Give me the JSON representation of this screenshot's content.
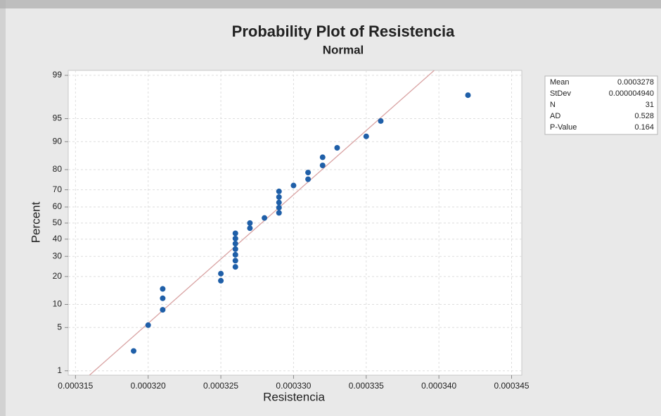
{
  "chart_data": {
    "type": "probability",
    "title": "Probability Plot of Resistencia",
    "subtitle": "Normal",
    "x_label": "Resistencia",
    "y_label": "Percent",
    "y_scale": "normal",
    "grid": true,
    "color": "#1f5fa8",
    "fit_color": "#d9a3a3",
    "x": [
      0.000319,
      0.00032,
      0.000321,
      0.000321,
      0.000321,
      0.000325,
      0.000325,
      0.000326,
      0.000326,
      0.000326,
      0.000326,
      0.000326,
      0.000326,
      0.000326,
      0.000327,
      0.000327,
      0.000328,
      0.000329,
      0.000329,
      0.000329,
      0.000329,
      0.000329,
      0.00033,
      0.000331,
      0.000331,
      0.000332,
      0.000332,
      0.000333,
      0.000335,
      0.000336,
      0.000342
    ],
    "values": [
      2.2,
      5.4,
      8.6,
      11.8,
      15.0,
      18.2,
      21.3,
      24.5,
      27.7,
      30.9,
      34.1,
      37.3,
      40.4,
      43.6,
      46.8,
      50.0,
      53.2,
      56.4,
      59.6,
      62.7,
      65.9,
      69.1,
      72.3,
      75.5,
      78.7,
      81.8,
      85.0,
      88.2,
      91.4,
      94.6,
      97.8
    ],
    "xlim": [
      0.0003145,
      0.0003457
    ],
    "xticks": [
      0.000315,
      {
        "value": 0.00032,
        "label": "0.000320"
      },
      0.000325,
      {
        "value": 0.00033,
        "label": "0.000330"
      },
      0.000335,
      {
        "value": 0.00034,
        "label": "0.000340"
      },
      0.000345
    ],
    "ylim": [
      0.83,
      99.19
    ],
    "yticks": [
      1,
      5,
      10,
      20,
      30,
      40,
      50,
      60,
      70,
      80,
      90,
      95,
      99
    ],
    "stats": [
      {
        "name": "Mean",
        "value": 0.0003278
      },
      {
        "name": "StDev",
        "value": 4.94e-06,
        "label": "0.000004940"
      },
      {
        "name": "N",
        "value": 31
      },
      {
        "name": "AD",
        "value": 0.528
      },
      {
        "name": "P-Value",
        "value": 0.164
      }
    ]
  }
}
